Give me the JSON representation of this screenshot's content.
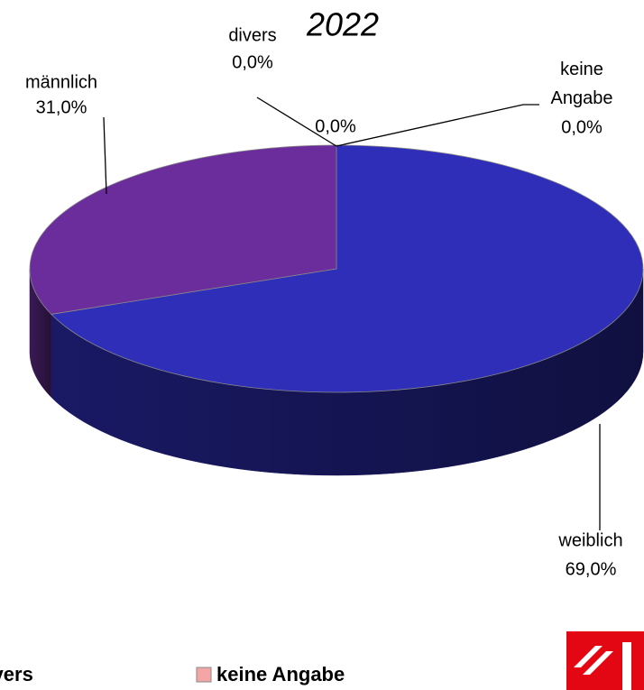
{
  "chart_data": {
    "type": "pie",
    "title": "2022",
    "categories": [
      "weiblich",
      "männlich",
      "divers",
      null,
      "keine Angabe"
    ],
    "values": [
      69.0,
      31.0,
      0.0,
      0.0,
      0.0
    ],
    "value_labels": [
      "69,0%",
      "31,0%",
      "0,0%",
      "0,0%",
      "0,0%"
    ],
    "colors": [
      "#2e2eb8",
      "#6b2d9b",
      "#c090d0",
      "#8080c0",
      "#f4a6a6"
    ]
  }
}
